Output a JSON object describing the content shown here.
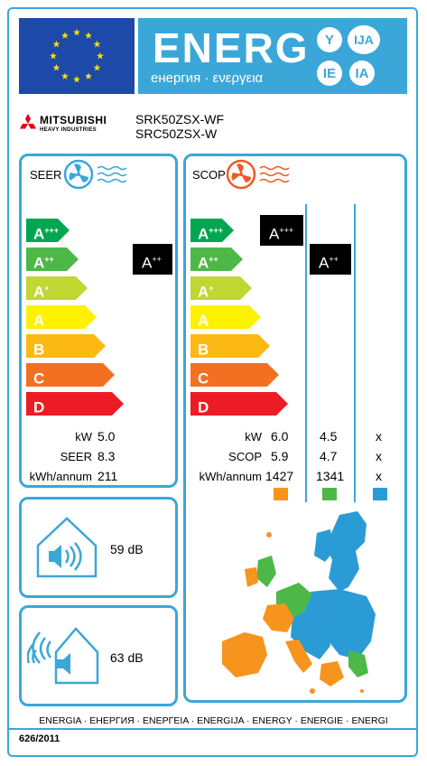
{
  "header": {
    "energ_title": "ENERG",
    "energ_subtitle": "енергия · ενεργεια",
    "lang_codes": [
      "Y",
      "IJA",
      "IE",
      "IA"
    ],
    "eu_flag": "eu-flag-icon"
  },
  "brand": {
    "name_line1": "MITSUBISHI",
    "name_line2": "HEAVY INDUSTRIES",
    "logo": "mitsubishi-diamonds-icon"
  },
  "models": {
    "indoor": "SRK50ZSX-WF",
    "outdoor": "SRC50ZSX-W"
  },
  "classes": [
    {
      "letter": "A",
      "sup": "+++",
      "color": "#00a651"
    },
    {
      "letter": "A",
      "sup": "++",
      "color": "#4db848"
    },
    {
      "letter": "A",
      "sup": "+",
      "color": "#bfd730"
    },
    {
      "letter": "A",
      "sup": "",
      "color": "#fff200"
    },
    {
      "letter": "B",
      "sup": "",
      "color": "#fdb913"
    },
    {
      "letter": "C",
      "sup": "",
      "color": "#f37021"
    },
    {
      "letter": "D",
      "sup": "",
      "color": "#ed1c24"
    }
  ],
  "cooling": {
    "title": "SEER",
    "icon": "fan-cold-icon",
    "rating_letter": "A",
    "rating_sup": "++",
    "rows": [
      {
        "label": "kW",
        "value": "5.0"
      },
      {
        "label": "SEER",
        "value": "8.3"
      },
      {
        "label": "kWh/annum",
        "value": "211"
      }
    ]
  },
  "heating": {
    "title": "SCOP",
    "icon": "fan-warm-icon",
    "ratings": [
      {
        "letter": "A",
        "sup": "+++"
      },
      {
        "letter": "A",
        "sup": "++"
      }
    ],
    "labels": [
      "kW",
      "SCOP",
      "kWh/annum"
    ],
    "columns": [
      {
        "values": [
          "6.0",
          "5.9",
          "1427"
        ],
        "color": "#f7941d"
      },
      {
        "values": [
          "4.5",
          "4.7",
          "1341"
        ],
        "color": "#4db848"
      },
      {
        "values": [
          "x",
          "x",
          "x"
        ],
        "color": "#2b9bd6"
      }
    ]
  },
  "noise": {
    "indoor": {
      "value": "59 dB",
      "icon": "house-speaker-indoor-icon"
    },
    "outdoor": {
      "value": "63 dB",
      "icon": "house-speaker-outdoor-icon"
    }
  },
  "map": {
    "icon": "europe-climate-zones-map"
  },
  "footer": {
    "languages": "ENERGIA · ЕНЕРГИЯ · ΕΝΕΡΓΕΙΑ · ENERGIJA · ENERGY · ENERGIE · ENERGI",
    "regulation": "626/2011"
  }
}
